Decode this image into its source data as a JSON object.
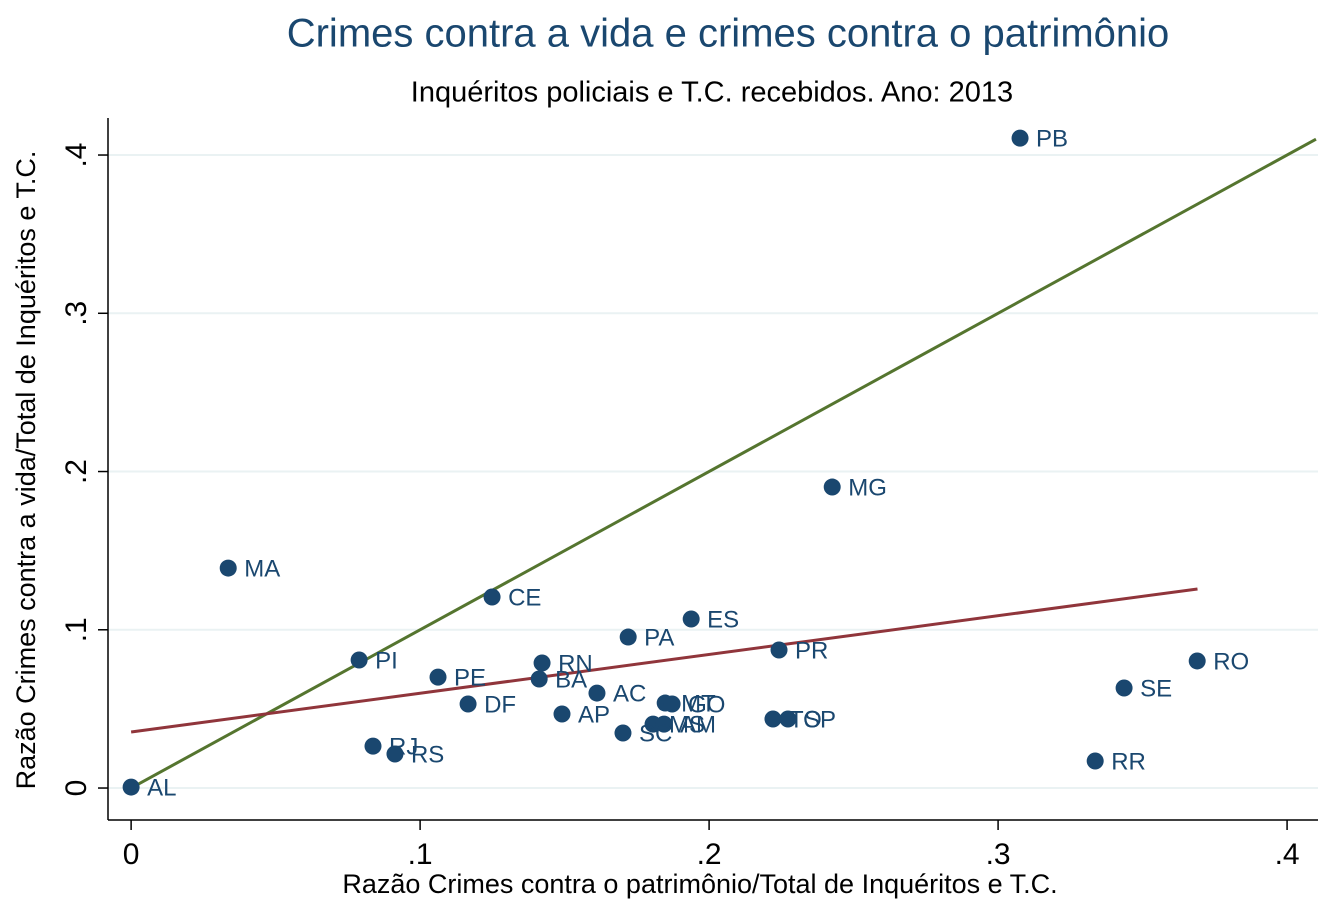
{
  "chart_data": {
    "type": "scatter",
    "title": "Crimes contra a vida e crimes contra o patrimônio",
    "subtitle": "Inquéritos policiais e T.C. recebidos. Ano: 2013",
    "x_label": "Razão Crimes contra o patrimônio/Total de Inquéritos e T.C.",
    "y_label": "Razão Crimes contra a vida/Total de Inquéritos e T.C.",
    "labels": [
      "PB",
      "MG",
      "MA",
      "CE",
      "ES",
      "PA",
      "PR",
      "RO",
      "PI",
      "RN",
      "PE",
      "BA",
      "SE",
      "AC",
      "MT",
      "GO",
      "DF",
      "AP",
      "TO",
      "SP",
      "MS",
      "AM",
      "SC",
      "RJ",
      "RS",
      "RR",
      "AL"
    ],
    "x": [
      0.3076,
      0.2426,
      0.0336,
      0.1249,
      0.1938,
      0.172,
      0.2242,
      0.3689,
      0.0789,
      0.1422,
      0.1062,
      0.1412,
      0.3436,
      0.1612,
      0.1848,
      0.1872,
      0.1166,
      0.1491,
      0.2221,
      0.2273,
      0.1806,
      0.1844,
      0.1702,
      0.0837,
      0.0913,
      0.3336,
      0
    ],
    "values": [
      0.4107,
      0.1902,
      0.139,
      0.1207,
      0.1068,
      0.0954,
      0.0872,
      0.0803,
      0.0809,
      0.079,
      0.0701,
      0.0689,
      0.0632,
      0.06,
      0.0537,
      0.0531,
      0.0531,
      0.0468,
      0.0436,
      0.0436,
      0.0404,
      0.0404,
      0.0348,
      0.0265,
      0.0215,
      0.0171,
      0.0006
    ],
    "color": "#1a476f",
    "fit_lines": [
      {
        "color": "#55752f",
        "x": [
          0,
          0.41
        ],
        "values": [
          0,
          0.41
        ]
      },
      {
        "color": "#90353b",
        "x": [
          0,
          0.369
        ],
        "values": [
          0.0354,
          0.1258
        ]
      }
    ],
    "xlim": [
      -0.008,
      0.4107
    ],
    "ylim": [
      -0.0202,
      0.4234
    ],
    "xticks": [
      0,
      {
        "value": 0.1,
        "label": ".1"
      },
      {
        "value": 0.2,
        "label": ".2"
      },
      {
        "value": 0.3,
        "label": ".3"
      },
      {
        "value": 0.4,
        "label": ".4"
      }
    ],
    "yticks": [
      0,
      {
        "value": 0.1,
        "label": ".1"
      },
      {
        "value": 0.2,
        "label": ".2"
      },
      {
        "value": 0.3,
        "label": ".3"
      },
      {
        "value": 0.4,
        "label": ".4"
      }
    ],
    "grid": true
  }
}
